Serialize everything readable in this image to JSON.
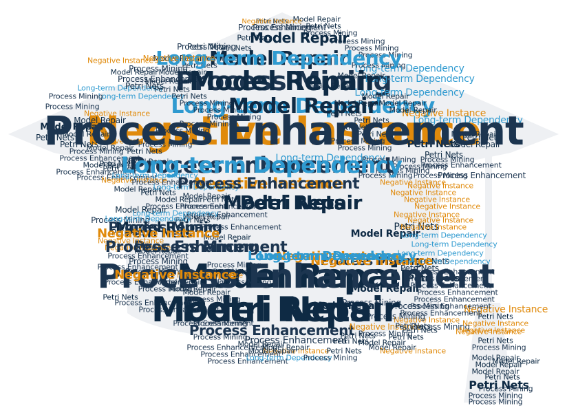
{
  "palette": {
    "background": "#ffffff",
    "cap_fill": "#eef0f3",
    "Petri Nets": "#0e2a44",
    "Model Repair": "#0e2a44",
    "Process Mining": "#1c3550",
    "Process Enhancement": "#1c3550",
    "Negative Instance": "#e08a0b",
    "Long-term Dependency": "#2f9ad0"
  },
  "shape": "graduation-cap",
  "words": [
    {
      "text": "Negative Instance"
    },
    {
      "text": "Model Repair"
    },
    {
      "text": "Petri Nets"
    },
    {
      "text": "Process Mining"
    },
    {
      "text": "Long-term Dependency"
    },
    {
      "text": "Process Enhancement"
    },
    {
      "text": "Model Repair"
    },
    {
      "text": "Petri Nets"
    },
    {
      "text": "Negative Instance"
    },
    {
      "text": "Process Mining"
    },
    {
      "text": "Model Repair"
    },
    {
      "text": "Petri Nets"
    },
    {
      "text": "Process Mining"
    },
    {
      "text": "Petri Nets"
    },
    {
      "text": "Negative Instance"
    },
    {
      "text": "Long-term Dependency"
    },
    {
      "text": "Model Repair"
    },
    {
      "text": "Process Mining"
    },
    {
      "text": "Petri Nets"
    },
    {
      "text": "Petri Nets"
    },
    {
      "text": "Model Repair"
    },
    {
      "text": "Process Mining"
    },
    {
      "text": "Process Enhancement"
    },
    {
      "text": "Long-term Dependency"
    },
    {
      "text": "Long-term Dependency"
    },
    {
      "text": "Negative Instance"
    },
    {
      "text": "Negative Instance"
    },
    {
      "text": "Model Repair"
    },
    {
      "text": "Petri Nets"
    },
    {
      "text": "Model Repair"
    },
    {
      "text": "Process Mining"
    },
    {
      "text": "Model Repair"
    },
    {
      "text": "Model Repair"
    },
    {
      "text": "Petri Nets"
    },
    {
      "text": "Process Mining"
    },
    {
      "text": "Model Repair"
    },
    {
      "text": "Process Mining"
    },
    {
      "text": "Petri Nets"
    },
    {
      "text": "Petri Nets"
    },
    {
      "text": "Petri Nets"
    },
    {
      "text": "Model Repair"
    },
    {
      "text": "Process Mining"
    },
    {
      "text": "Petri Nets"
    },
    {
      "text": "Model Repair"
    },
    {
      "text": "Petri Nets"
    },
    {
      "text": "Process Enhancement"
    },
    {
      "text": "Process Enhancement"
    },
    {
      "text": "Process Enhancement"
    },
    {
      "text": "Process Enhancement"
    },
    {
      "text": "Process Enhancement"
    },
    {
      "text": "Negative Instance"
    },
    {
      "text": "Negative Instance"
    },
    {
      "text": "Negative Instance"
    },
    {
      "text": "Negative Instance"
    },
    {
      "text": "Negative Instance"
    },
    {
      "text": "Long-term Dependency"
    },
    {
      "text": "Long-term Dependency"
    },
    {
      "text": "Long-term Dependency"
    },
    {
      "text": "Long-term Dependency"
    },
    {
      "text": "Long-term Dependency"
    },
    {
      "text": "Model Repair"
    },
    {
      "text": "Model Repair"
    },
    {
      "text": "Model Repair"
    },
    {
      "text": "Petri Nets"
    },
    {
      "text": "Petri Nets"
    },
    {
      "text": "Petri Nets"
    },
    {
      "text": "Process Mining"
    },
    {
      "text": "Process Mining"
    },
    {
      "text": "Process Mining"
    },
    {
      "text": "Process Mining"
    },
    {
      "text": "Process Mining"
    },
    {
      "text": "Petri Nets"
    },
    {
      "text": "Petri Nets"
    },
    {
      "text": "Petri Nets"
    },
    {
      "text": "Model Repair"
    },
    {
      "text": "Model Repair"
    },
    {
      "text": "Petri Nets"
    },
    {
      "text": "Process Enhancement"
    },
    {
      "text": "Process Enhancement"
    },
    {
      "text": "Negative Instance"
    },
    {
      "text": "Negative Instance"
    },
    {
      "text": "Negative Instance"
    },
    {
      "text": "Model Repair"
    },
    {
      "text": "Model Repair"
    },
    {
      "text": "Petri Nets"
    },
    {
      "text": "Process Mining"
    },
    {
      "text": "Process Mining"
    },
    {
      "text": "Process Mining"
    },
    {
      "text": "Petri Nets"
    },
    {
      "text": "Negative Instance"
    },
    {
      "text": "Model Repair"
    },
    {
      "text": "Model Repair"
    },
    {
      "text": "Petri Nets"
    },
    {
      "text": "Process Mining"
    },
    {
      "text": "Petri Nets"
    },
    {
      "text": "Model Repair"
    },
    {
      "text": "Petri Nets"
    },
    {
      "text": "Model Repair"
    },
    {
      "text": "Petri Nets"
    },
    {
      "text": "Process Mining"
    },
    {
      "text": "Process Mining"
    },
    {
      "text": "Process Mining"
    },
    {
      "text": "Model Repair"
    },
    {
      "text": "Model Repair"
    },
    {
      "text": "Model Repair"
    },
    {
      "text": "Process Mining"
    },
    {
      "text": "Process Mining"
    },
    {
      "text": "Process Mining"
    },
    {
      "text": "Petri Nets"
    },
    {
      "text": "Negative Instance"
    },
    {
      "text": "Model Repair"
    },
    {
      "text": "Process Mining"
    },
    {
      "text": "Process Mining"
    },
    {
      "text": "Process Enhancement"
    },
    {
      "text": "Process Enhancement"
    },
    {
      "text": "Process Enhancement"
    },
    {
      "text": "Long-term Dependency"
    },
    {
      "text": "Model Repair"
    },
    {
      "text": "Model Repair"
    },
    {
      "text": "Model Repair"
    },
    {
      "text": "Process Mining"
    },
    {
      "text": "Petri Nets"
    },
    {
      "text": "Petri Nets"
    },
    {
      "text": "Petri Nets"
    },
    {
      "text": "Model Repair"
    },
    {
      "text": "Model Repair"
    },
    {
      "text": "Petri Nets"
    },
    {
      "text": "Petri Nets"
    },
    {
      "text": "Petri Nets"
    },
    {
      "text": "Process Enhancement"
    },
    {
      "text": "Process Enhancement"
    },
    {
      "text": "Process Enhancement"
    },
    {
      "text": "Process Enhancement"
    },
    {
      "text": "Process Enhancement"
    },
    {
      "text": "Process Enhancement"
    },
    {
      "text": "Process Enhancement"
    },
    {
      "text": "Long-term Dependency"
    },
    {
      "text": "Long-term Dependency"
    },
    {
      "text": "Long-term Dependency"
    },
    {
      "text": "Long-term Dependency"
    },
    {
      "text": "Negative Instance"
    },
    {
      "text": "Negative Instance"
    },
    {
      "text": "Negative Instance"
    },
    {
      "text": "Negative Instance"
    },
    {
      "text": "Negative Instance"
    },
    {
      "text": "Negative Instance"
    },
    {
      "text": "Negative Instance"
    },
    {
      "text": "Negative Instance"
    },
    {
      "text": "Process Mining"
    },
    {
      "text": "Process Mining"
    },
    {
      "text": "Process Mining"
    },
    {
      "text": "Process Mining"
    },
    {
      "text": "Process Mining"
    },
    {
      "text": "Process Mining"
    },
    {
      "text": "Process Mining"
    },
    {
      "text": "Process Mining"
    },
    {
      "text": "Petri Nets"
    },
    {
      "text": "Petri Nets"
    },
    {
      "text": "Petri Nets"
    },
    {
      "text": "Petri Nets"
    },
    {
      "text": "Model Repair"
    },
    {
      "text": "Model Repair"
    },
    {
      "text": "Model Repair"
    },
    {
      "text": "Model Repair"
    },
    {
      "text": "Model Repair"
    },
    {
      "text": "Model Repair"
    },
    {
      "text": "Process Mining"
    },
    {
      "text": "Process Mining"
    },
    {
      "text": "Process Mining"
    },
    {
      "text": "Process Mining"
    },
    {
      "text": "Process Mining"
    },
    {
      "text": "Petri Nets"
    },
    {
      "text": "Model Repair"
    },
    {
      "text": "Petri Nets"
    },
    {
      "text": "Petri Nets"
    },
    {
      "text": "Petri Nets"
    },
    {
      "text": "Petri Nets"
    },
    {
      "text": "Model Repair"
    },
    {
      "text": "Model Repair"
    },
    {
      "text": "Petri Nets"
    },
    {
      "text": "Petri Nets"
    },
    {
      "text": "Process Mining"
    },
    {
      "text": "Process Mining"
    },
    {
      "text": "Process Mining"
    },
    {
      "text": "Process Mining"
    },
    {
      "text": "Process Mining"
    },
    {
      "text": "Process Mining"
    },
    {
      "text": "Petri Nets"
    },
    {
      "text": "Negative Instance"
    },
    {
      "text": "Model Repair"
    },
    {
      "text": "Process Enhancement"
    },
    {
      "text": "Process Enhancement"
    },
    {
      "text": "Process Enhancement"
    },
    {
      "text": "Negative Instance"
    },
    {
      "text": "Long-term Dependency"
    },
    {
      "text": "Process Enhancement"
    },
    {
      "text": "Long-term Dependency"
    },
    {
      "text": "Model Repair"
    },
    {
      "text": "Process Enhancement"
    },
    {
      "text": "Process Enhancement"
    },
    {
      "text": "Process Enhancement"
    },
    {
      "text": "Model Repair"
    },
    {
      "text": "Model Repair"
    },
    {
      "text": "Petri Nets"
    },
    {
      "text": "Process Enhancement"
    },
    {
      "text": "Long-term Dependency"
    },
    {
      "text": "Long-term Dependency"
    },
    {
      "text": "Negative Instance"
    },
    {
      "text": "Negative Instance"
    },
    {
      "text": "Process Enhancement"
    },
    {
      "text": "Process Enhancement"
    },
    {
      "text": "Process Enhancement"
    },
    {
      "text": "Process Enhancement"
    },
    {
      "text": "Process Enhancement"
    },
    {
      "text": "Model Repair"
    },
    {
      "text": "Model Repair"
    },
    {
      "text": "Model Repair"
    },
    {
      "text": "Long-term Dependency"
    },
    {
      "text": "Long-term Dependency"
    },
    {
      "text": "Model Repair"
    },
    {
      "text": "Process Enhancement"
    },
    {
      "text": "Process Enhancement"
    },
    {
      "text": "Process Mining"
    },
    {
      "text": "Negative Instance"
    },
    {
      "text": "Negative Instance"
    },
    {
      "text": "Negative Instance"
    },
    {
      "text": "Long-term Dependency"
    },
    {
      "text": "Long-term Dependency"
    },
    {
      "text": "Model Repair"
    },
    {
      "text": "Process Enhancement"
    },
    {
      "text": "Negative Instance"
    },
    {
      "text": "Process Mining"
    },
    {
      "text": "Negative Instance"
    }
  ]
}
